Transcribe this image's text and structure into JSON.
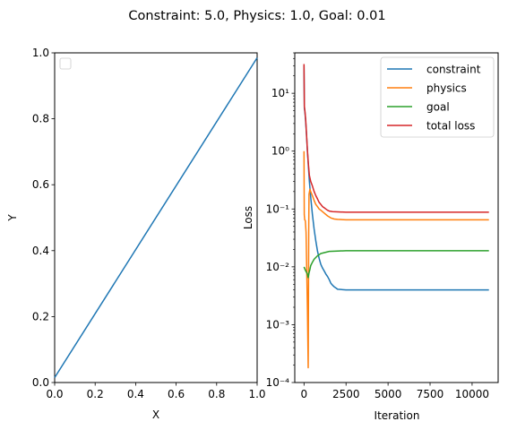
{
  "suptitle": "Constraint: 5.0, Physics: 1.0, Goal: 0.01",
  "chart_data": [
    {
      "type": "line",
      "xlabel": "X",
      "ylabel": "Y",
      "xlim": [
        0,
        1
      ],
      "ylim": [
        0,
        1
      ],
      "xticks": [
        "0.0",
        "0.2",
        "0.4",
        "0.6",
        "0.8",
        "1.0"
      ],
      "yticks": [
        "0.0",
        "0.2",
        "0.4",
        "0.6",
        "0.8",
        "1.0"
      ],
      "legend": "empty, upper-left",
      "series": [
        {
          "color": "#1f77b4",
          "x": [
            0,
            1
          ],
          "y": [
            0.015,
            0.985
          ]
        }
      ]
    },
    {
      "type": "line",
      "xlabel": "Iteration",
      "ylabel": "Loss",
      "yscale": "log",
      "xlim": [
        -550,
        11550
      ],
      "ylim": [
        0.0001,
        50
      ],
      "xticks": [
        "0",
        "2500",
        "5000",
        "7500",
        "10000"
      ],
      "yticks": [
        "10⁻⁴",
        "10⁻³",
        "10⁻²",
        "10⁻¹",
        "10⁰",
        "10¹"
      ],
      "legend": "upper-right",
      "series": [
        {
          "name": "constraint",
          "color": "#1f77b4",
          "x": [
            0,
            20,
            50,
            100,
            150,
            200,
            260,
            320,
            400,
            500,
            600,
            700,
            800,
            900,
            1000,
            1100,
            1200,
            1300,
            1400,
            1500,
            1600,
            1700,
            1800,
            1900,
            2000,
            2500,
            5000,
            7500,
            11000
          ],
          "y": [
            30,
            5.5,
            4.8,
            3.2,
            1.9,
            1.0,
            0.55,
            0.3,
            0.16,
            0.08,
            0.045,
            0.028,
            0.019,
            0.014,
            0.011,
            0.0095,
            0.0085,
            0.0075,
            0.0068,
            0.006,
            0.0052,
            0.0048,
            0.0045,
            0.0043,
            0.0041,
            0.004,
            0.004,
            0.004,
            0.004
          ]
        },
        {
          "name": "physics",
          "color": "#ff7f0e",
          "x": [
            0,
            15,
            40,
            80,
            120,
            160,
            200,
            250,
            280,
            300,
            350,
            400,
            500,
            600,
            700,
            800,
            900,
            1000,
            1200,
            1400,
            1600,
            1800,
            2000,
            2500,
            5000,
            7500,
            11000
          ],
          "y": [
            1.0,
            0.08,
            0.065,
            0.063,
            0.04,
            0.01,
            0.002,
            0.00018,
            0.05,
            0.18,
            0.22,
            0.2,
            0.17,
            0.14,
            0.12,
            0.11,
            0.1,
            0.095,
            0.085,
            0.076,
            0.07,
            0.067,
            0.066,
            0.065,
            0.065,
            0.065,
            0.065
          ]
        },
        {
          "name": "goal",
          "color": "#2ca02c",
          "x": [
            0,
            100,
            200,
            250,
            300,
            350,
            400,
            500,
            600,
            800,
            1000,
            1500,
            2000,
            2500,
            5000,
            7500,
            11000
          ],
          "y": [
            0.01,
            0.0085,
            0.0075,
            0.0065,
            0.0078,
            0.009,
            0.0105,
            0.012,
            0.0135,
            0.0155,
            0.017,
            0.0185,
            0.0188,
            0.019,
            0.019,
            0.019,
            0.019
          ]
        },
        {
          "name": "total loss",
          "color": "#d62728",
          "x": [
            0,
            20,
            50,
            100,
            150,
            200,
            260,
            320,
            400,
            500,
            600,
            700,
            800,
            900,
            1000,
            1100,
            1200,
            1300,
            1400,
            1500,
            1700,
            2000,
            2500,
            5000,
            7500,
            11000
          ],
          "y": [
            32,
            6.0,
            5.0,
            3.5,
            2.0,
            1.05,
            0.6,
            0.38,
            0.3,
            0.25,
            0.2,
            0.17,
            0.15,
            0.13,
            0.12,
            0.11,
            0.105,
            0.1,
            0.095,
            0.092,
            0.09,
            0.089,
            0.088,
            0.088,
            0.088,
            0.088
          ]
        }
      ]
    }
  ]
}
